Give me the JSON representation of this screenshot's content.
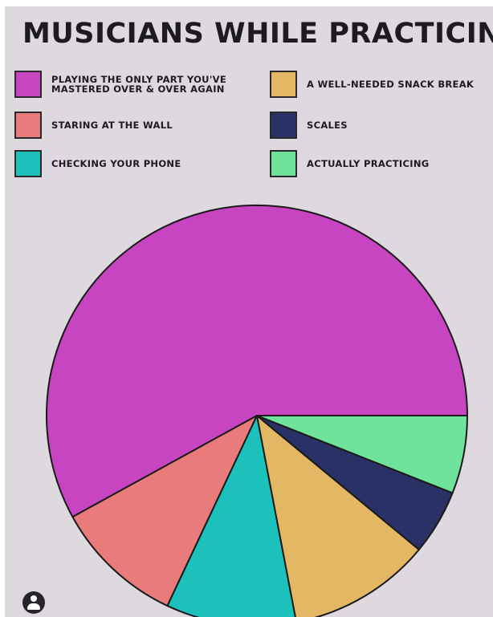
{
  "chart_data": {
    "type": "pie",
    "title": "MUSICIANS WHILE PRACTICING",
    "start_angle_deg": 0,
    "direction": "clockwise",
    "legend_placement": "top",
    "slices": [
      {
        "label": "PLAYING THE ONLY PART YOU'VE\nMASTERED OVER & OVER AGAIN",
        "value": 58,
        "color": "#c845c2"
      },
      {
        "label": "STARING AT THE WALL",
        "value": 10,
        "color": "#ea7b7b"
      },
      {
        "label": "CHECKING YOUR PHONE",
        "value": 10,
        "color": "#1dc1bc"
      },
      {
        "label": "A WELL-NEEDED SNACK BREAK",
        "value": 11,
        "color": "#e4b765"
      },
      {
        "label": "SCALES",
        "value": 5,
        "color": "#293166"
      },
      {
        "label": "ACTUALLY PRACTICING",
        "value": 6,
        "color": "#6fe39a"
      }
    ]
  },
  "legend": {
    "left": [
      {
        "label": "PLAYING THE ONLY PART YOU'VE\nMASTERED OVER & OVER AGAIN",
        "color": "#c845c2"
      },
      {
        "label": "STARING AT THE WALL",
        "color": "#ea7b7b"
      },
      {
        "label": "CHECKING YOUR PHONE",
        "color": "#1dc1bc"
      }
    ],
    "right": [
      {
        "label": "A WELL-NEEDED SNACK BREAK",
        "color": "#e4b765"
      },
      {
        "label": "SCALES",
        "color": "#293166"
      },
      {
        "label": "ACTUALLY PRACTICING",
        "color": "#6fe39a"
      }
    ]
  },
  "footer": {
    "avatar_icon": "user-avatar-icon"
  }
}
